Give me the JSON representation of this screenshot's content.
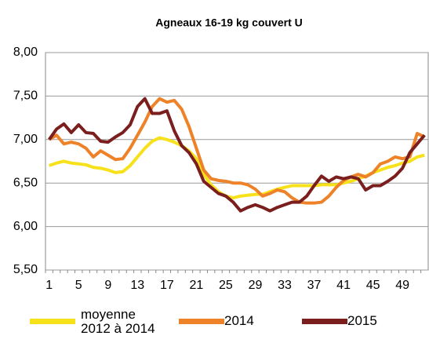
{
  "chart_data": {
    "type": "line",
    "title": "Agneaux 16-19 kg couvert U",
    "categories": [
      1,
      null,
      null,
      null,
      5,
      null,
      null,
      null,
      9,
      null,
      null,
      null,
      13,
      null,
      null,
      null,
      17,
      null,
      null,
      null,
      21,
      null,
      null,
      null,
      25,
      null,
      null,
      null,
      29,
      null,
      null,
      null,
      33,
      null,
      null,
      null,
      37,
      null,
      null,
      null,
      41,
      null,
      null,
      null,
      45,
      null,
      null,
      null,
      49,
      null,
      null,
      null
    ],
    "series": [
      {
        "name": "moyenne 2012 à 2014",
        "color": "#f7e11a",
        "values": [
          6.7,
          6.73,
          6.75,
          6.73,
          6.72,
          6.71,
          6.68,
          6.67,
          6.65,
          6.62,
          6.63,
          6.7,
          6.8,
          6.9,
          6.98,
          7.02,
          7.0,
          6.97,
          6.93,
          6.87,
          6.78,
          6.6,
          6.48,
          6.4,
          6.35,
          6.33,
          6.35,
          6.36,
          6.37,
          6.37,
          6.4,
          6.43,
          6.45,
          6.47,
          6.47,
          6.47,
          6.47,
          6.48,
          6.48,
          6.48,
          6.5,
          6.52,
          6.55,
          6.58,
          6.62,
          6.65,
          6.68,
          6.7,
          6.73,
          6.75,
          6.8,
          6.82
        ]
      },
      {
        "name": "2014",
        "color": "#ee8229",
        "values": [
          7.0,
          7.05,
          6.95,
          6.97,
          6.95,
          6.9,
          6.8,
          6.87,
          6.82,
          6.77,
          6.78,
          6.9,
          7.05,
          7.2,
          7.38,
          7.47,
          7.43,
          7.45,
          7.35,
          7.15,
          6.9,
          6.65,
          6.55,
          6.53,
          6.52,
          6.5,
          6.5,
          6.48,
          6.43,
          6.35,
          6.38,
          6.42,
          6.4,
          6.33,
          6.28,
          6.27,
          6.27,
          6.28,
          6.35,
          6.45,
          6.53,
          6.57,
          6.6,
          6.57,
          6.62,
          6.72,
          6.75,
          6.8,
          6.78,
          6.8,
          7.07,
          7.03
        ]
      },
      {
        "name": "2015",
        "color": "#7b1e1e",
        "values": [
          7.0,
          7.12,
          7.18,
          7.08,
          7.17,
          7.08,
          7.07,
          6.98,
          6.97,
          7.03,
          7.08,
          7.17,
          7.38,
          7.47,
          7.3,
          7.3,
          7.33,
          7.1,
          6.93,
          6.85,
          6.72,
          6.52,
          6.45,
          6.38,
          6.35,
          6.28,
          6.18,
          6.22,
          6.25,
          6.22,
          6.18,
          6.22,
          6.25,
          6.28,
          6.28,
          6.35,
          6.47,
          6.58,
          6.52,
          6.57,
          6.55,
          6.57,
          6.55,
          6.42,
          6.47,
          6.47,
          6.52,
          6.58,
          6.67,
          6.85,
          6.95,
          7.05
        ]
      }
    ],
    "ylim": [
      5.5,
      8.0
    ],
    "yticks": [
      {
        "value": 5.5,
        "label": "5,50"
      },
      {
        "value": 6.0,
        "label": "6,00"
      },
      {
        "value": 6.5,
        "label": "6,50"
      },
      {
        "value": 7.0,
        "label": "7,00"
      },
      {
        "value": 7.5,
        "label": "7,50"
      },
      {
        "value": 8.0,
        "label": "8,00"
      }
    ],
    "grid": true,
    "legend": "bottom"
  }
}
